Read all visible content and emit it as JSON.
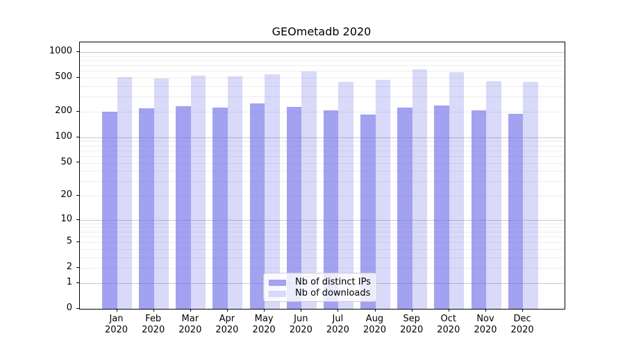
{
  "title": "GEOmetadb 2020",
  "chart_data": {
    "type": "bar",
    "title": "GEOmetadb 2020",
    "y_scale": "log1p",
    "categories": [
      "Jan",
      "Feb",
      "Mar",
      "Apr",
      "May",
      "Jun",
      "Jul",
      "Aug",
      "Sep",
      "Oct",
      "Nov",
      "Dec"
    ],
    "category_year": "2020",
    "series": [
      {
        "name": "Nb of distinct IPs",
        "values": [
          202,
          220,
          233,
          222,
          252,
          230,
          207,
          187,
          226,
          235,
          208,
          190
        ],
        "color": "rgba(105,105,232,0.62)",
        "swatch_color": "#a3a3f0"
      },
      {
        "name": "Nb of downloads",
        "values": [
          510,
          493,
          529,
          519,
          550,
          588,
          450,
          472,
          622,
          584,
          458,
          452
        ],
        "color": "rgba(105,105,232,0.25)",
        "swatch_color": "#d8d8f8"
      }
    ],
    "y_ticks": [
      0,
      1,
      2,
      5,
      10,
      20,
      50,
      100,
      200,
      500,
      1000
    ],
    "ylim": [
      0,
      1300
    ],
    "grid": {
      "major_values": [
        1,
        10,
        100,
        1000
      ],
      "minor_decades": [
        1,
        10,
        100
      ],
      "minor_subs": [
        2,
        3,
        4,
        5,
        6,
        7,
        8,
        9
      ],
      "major_color": "#c6c6c6",
      "minor_color": "#ededed"
    },
    "legend_position": "lower-center"
  }
}
